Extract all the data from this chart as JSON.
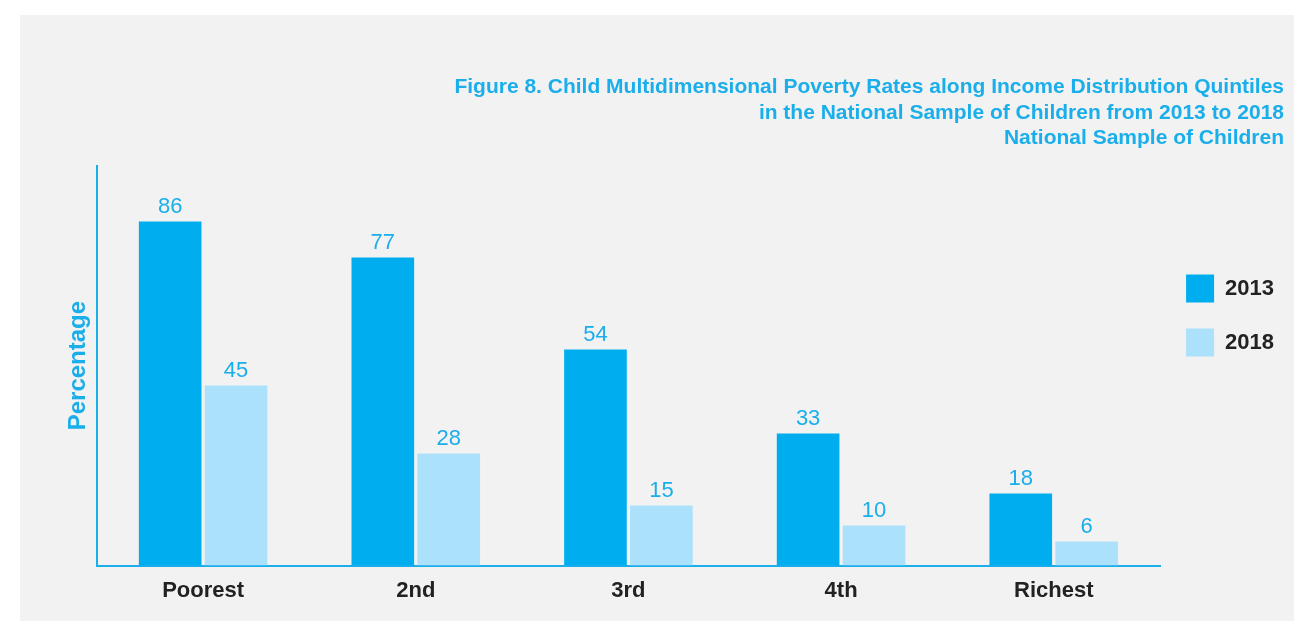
{
  "chart_data": {
    "type": "bar",
    "title": "Figure 8. Child Multidimensional Poverty Rates along Income Distribution Quintiles\nin the National Sample of Children from 2013 to 2018\nNational Sample of Children",
    "ylabel": "Percentage",
    "categories": [
      "Poorest",
      "2nd",
      "3rd",
      "4th",
      "Richest"
    ],
    "series": [
      {
        "name": "2013",
        "color": "#00aeef",
        "values": [
          86,
          77,
          54,
          33,
          18
        ]
      },
      {
        "name": "2018",
        "color": "#abe1fa",
        "values": [
          45,
          28,
          15,
          10,
          6
        ]
      }
    ],
    "ylim": [
      0,
      100
    ],
    "tick_labels": "x",
    "data_labels": true,
    "grid": false,
    "legend": "right"
  }
}
